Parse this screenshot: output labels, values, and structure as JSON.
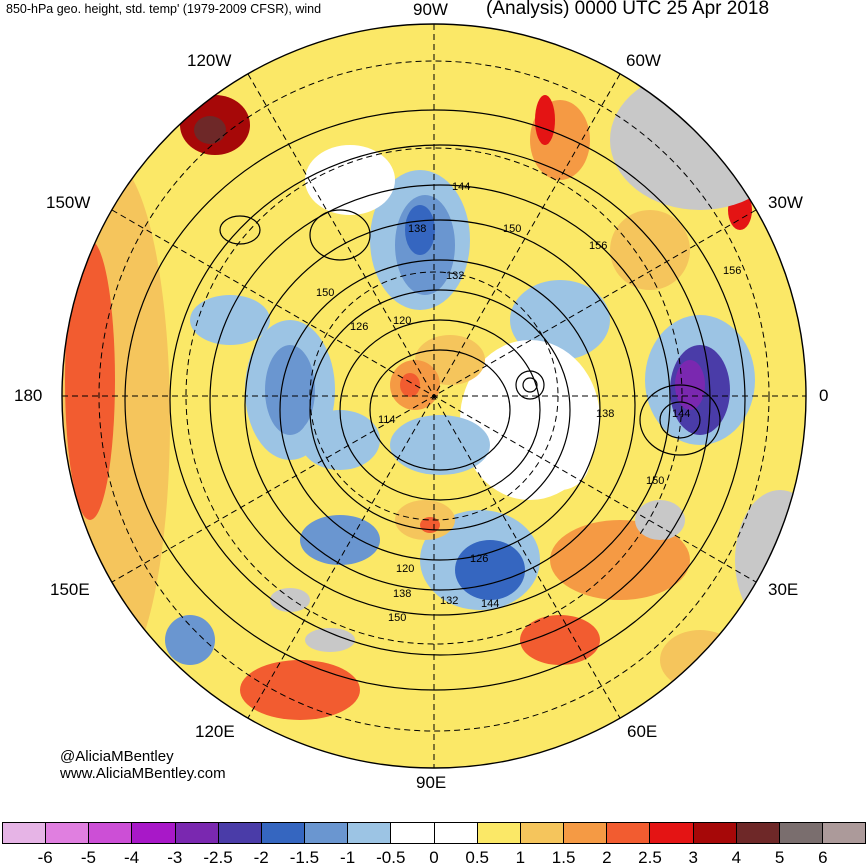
{
  "header": {
    "left_title": "850-hPa geo. height, std. temp' (1979-2009 CFSR), wind",
    "right_title": "(Analysis) 0000 UTC 25 Apr 2018"
  },
  "longitude_labels": {
    "top": "90W",
    "upper_left": "120W",
    "upper_right": "60W",
    "left_upper": "150W",
    "right_upper": "30W",
    "left": "180",
    "right": "0",
    "left_lower": "150E",
    "right_lower": "30E",
    "lower_left": "120E",
    "lower_right": "60E",
    "bottom": "90E"
  },
  "contour_labels": [
    "144",
    "138",
    "150",
    "132",
    "150",
    "126",
    "120",
    "114",
    "138",
    "144",
    "156",
    "156",
    "150",
    "126",
    "120",
    "138",
    "132",
    "144",
    "150"
  ],
  "credits": {
    "handle": "@AliciaMBentley",
    "website": "www.AliciaMBentley.com"
  },
  "colorbar": {
    "colors": [
      "#e6b4e6",
      "#e07fe0",
      "#cc4fd6",
      "#a818c8",
      "#7a28b0",
      "#4a3ca8",
      "#3566c0",
      "#6a96d0",
      "#9cc4e4",
      "#ffffff",
      "#ffffff",
      "#fbe867",
      "#f5c55c",
      "#f59a44",
      "#f25c30",
      "#e41414",
      "#a60808",
      "#6e2828",
      "#7a6e6e",
      "#ac9a9a"
    ],
    "ticks": [
      "-6",
      "-5",
      "-4",
      "-3",
      "-2.5",
      "-2",
      "-1.5",
      "-1",
      "-0.5",
      "0",
      "0.5",
      "1",
      "1.5",
      "2",
      "2.5",
      "3",
      "4",
      "5",
      "6"
    ]
  },
  "colors": {
    "warm": "#f5c55c",
    "hot": "#f25c30",
    "cold": "#6a96d0",
    "deep_cold": "#4a3ca8",
    "land": "#c8c8c8"
  }
}
